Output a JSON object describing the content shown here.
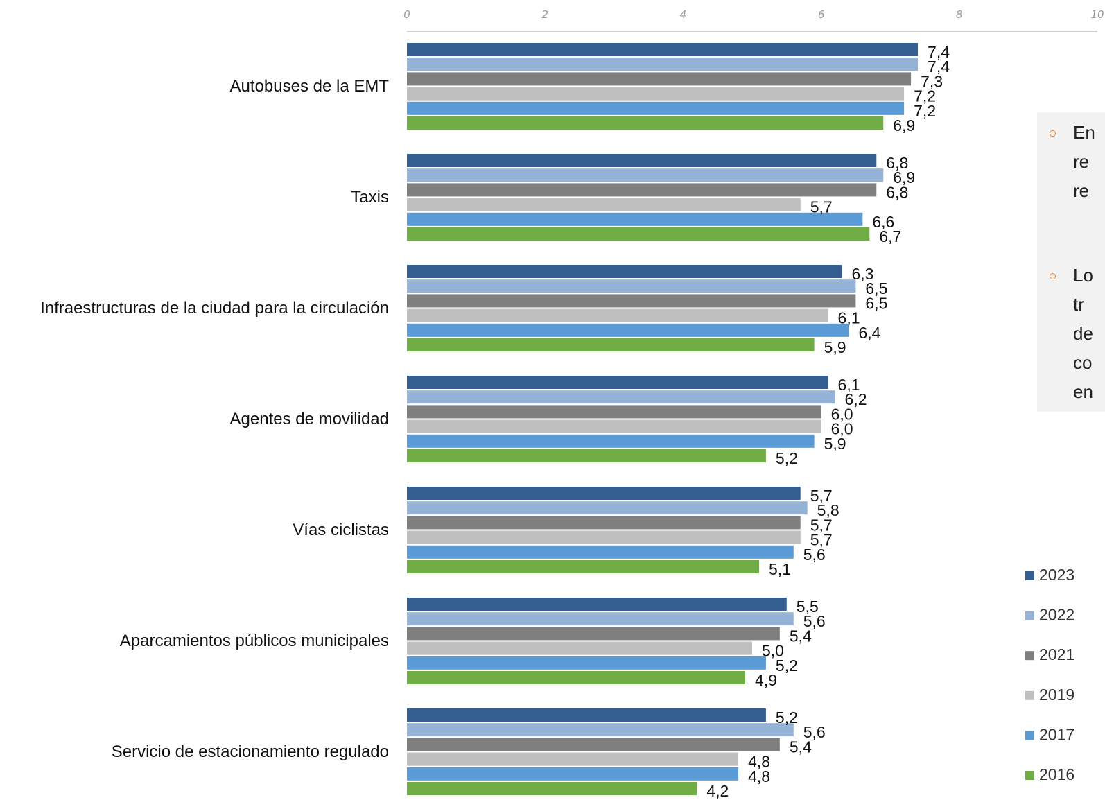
{
  "chart_data": {
    "type": "bar",
    "orientation": "horizontal",
    "title": "",
    "xlabel": "",
    "ylabel": "",
    "xlim": [
      0,
      10
    ],
    "xticks": [
      0,
      2,
      4,
      6,
      8,
      10
    ],
    "grid": false,
    "legend_position": "bottom-right",
    "categories": [
      "Autobuses de la EMT",
      "Taxis",
      "Infraestructuras de la ciudad para la circulación",
      "Agentes de movilidad",
      "Vías ciclistas",
      "Aparcamientos públicos municipales",
      "Servicio de estacionamiento regulado"
    ],
    "series": [
      {
        "name": "2023",
        "color": "#365f91",
        "values": [
          7.4,
          6.8,
          6.3,
          6.1,
          5.7,
          5.5,
          5.2
        ],
        "labels": [
          "7,4",
          "6,8",
          "6,3",
          "6,1",
          "5,7",
          "5,5",
          "5,2"
        ]
      },
      {
        "name": "2022",
        "color": "#95b3d7",
        "values": [
          7.4,
          6.9,
          6.5,
          6.2,
          5.8,
          5.6,
          5.6
        ],
        "labels": [
          "7,4",
          "6,9",
          "6,5",
          "6,2",
          "5,8",
          "5,6",
          "5,6"
        ]
      },
      {
        "name": "2021",
        "color": "#7f7f7f",
        "values": [
          7.3,
          6.8,
          6.5,
          6.0,
          5.7,
          5.4,
          5.4
        ],
        "labels": [
          "7,3",
          "6,8",
          "6,5",
          "6,0",
          "5,7",
          "5,4",
          "5,4"
        ]
      },
      {
        "name": "2019",
        "color": "#bfbfbf",
        "values": [
          7.2,
          5.7,
          6.1,
          6.0,
          5.7,
          5.0,
          4.8
        ],
        "labels": [
          "7,2",
          "5,7",
          "6,1",
          "6,0",
          "5,7",
          "5,0",
          "4,8"
        ]
      },
      {
        "name": "2017",
        "color": "#5b9bd5",
        "values": [
          7.2,
          6.6,
          6.4,
          5.9,
          5.6,
          5.2,
          4.8
        ],
        "labels": [
          "7,2",
          "6,6",
          "6,4",
          "5,9",
          "5,6",
          "5,2",
          "4,8"
        ]
      },
      {
        "name": "2016",
        "color": "#70ad47",
        "values": [
          6.9,
          6.7,
          5.9,
          5.2,
          5.1,
          4.9,
          4.2
        ],
        "labels": [
          "6,9",
          "6,7",
          "5,9",
          "5,2",
          "5,1",
          "4,9",
          "4,2"
        ]
      }
    ]
  },
  "note_panel": {
    "items": [
      {
        "lines": [
          "En",
          "re",
          "re"
        ]
      },
      {
        "lines": [
          "Lo",
          "tr",
          "de",
          "co",
          "en"
        ]
      }
    ]
  }
}
